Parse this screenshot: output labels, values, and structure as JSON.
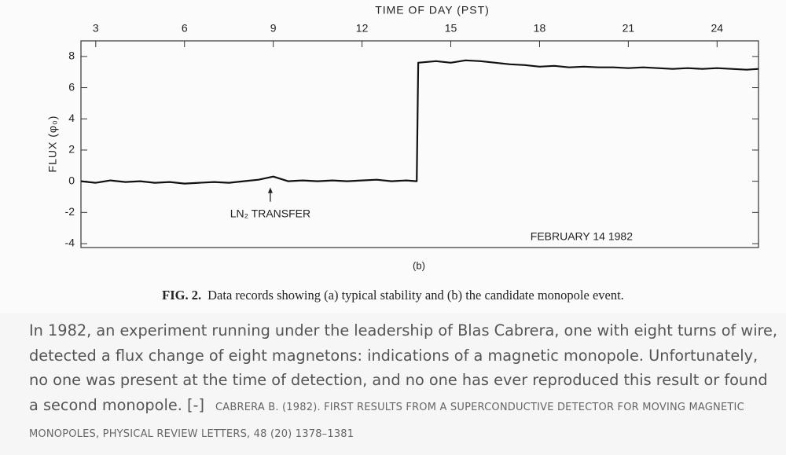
{
  "chart_data": {
    "type": "line",
    "x_label": "TIME OF DAY (PST)",
    "y_label": "FLUX (φ₀)",
    "x": [
      2.5,
      3,
      3.5,
      4,
      4.5,
      5,
      5.5,
      6,
      6.5,
      7,
      7.5,
      8,
      8.5,
      9,
      9.5,
      10,
      10.5,
      11,
      11.5,
      12,
      12.5,
      13,
      13.5,
      13.85,
      13.9,
      14.5,
      15,
      15.5,
      16,
      16.5,
      17,
      17.5,
      18,
      18.5,
      19,
      19.5,
      20,
      20.5,
      21,
      21.5,
      22,
      22.5,
      23,
      23.5,
      24,
      24.5,
      25,
      25.4
    ],
    "values": [
      0.0,
      -0.1,
      0.05,
      -0.05,
      0.0,
      -0.1,
      -0.05,
      -0.15,
      -0.1,
      -0.05,
      -0.1,
      0.0,
      0.1,
      0.3,
      0.0,
      0.05,
      0.0,
      0.05,
      0.0,
      0.05,
      0.1,
      0.0,
      0.05,
      0.0,
      7.6,
      7.7,
      7.6,
      7.75,
      7.7,
      7.6,
      7.5,
      7.45,
      7.35,
      7.4,
      7.3,
      7.35,
      7.3,
      7.3,
      7.25,
      7.3,
      7.25,
      7.2,
      7.25,
      7.2,
      7.25,
      7.2,
      7.15,
      7.2
    ],
    "color": "#111111",
    "xlim": [
      2.5,
      25.4
    ],
    "xticks": [
      3,
      6,
      9,
      12,
      15,
      18,
      21,
      24
    ],
    "ylim": [
      -4.25,
      9
    ],
    "yticks": [
      -4,
      -2,
      0,
      2,
      4,
      6,
      8
    ],
    "annotations": [
      {
        "text": "LN₂ TRANSFER",
        "x": 8.9,
        "y": 0
      },
      {
        "text": "FEBRUARY 14 1982"
      }
    ],
    "panel_label": "(b)"
  },
  "caption": {
    "label": "FIG. 2.",
    "text": "Data records showing (a) typical stability and (b) the candidate monopole event."
  },
  "article": {
    "paragraph": "In 1982, an experiment running under the leadership of Blas Cabrera, one with eight turns of wire, detected a flux change of eight magnetons: indications of a magnetic monopole. Unfortunately, no one was present at the time of detection, and no one has ever reproduced this result or found a second monopole.",
    "toggle": "[-]",
    "citation": "Cabrera B. (1982). First Results from a Superconductive Detector for Moving Magnetic Monopoles, Physical Review Letters, 48 (20) 1378–1381"
  }
}
